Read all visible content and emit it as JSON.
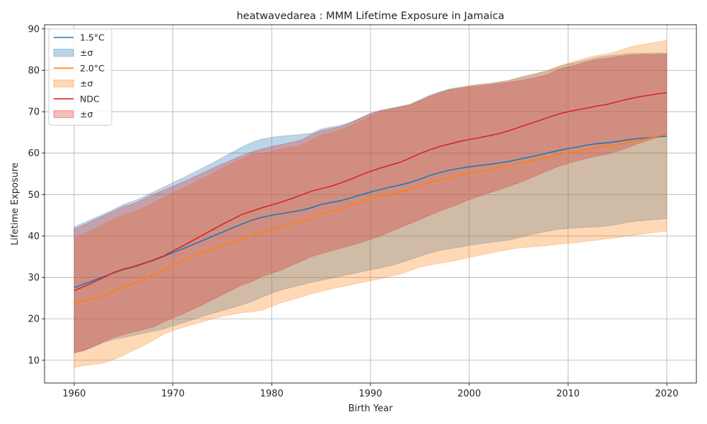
{
  "chart_data": {
    "type": "area",
    "title": "heatwavedarea : MMM Lifetime Exposure in Jamaica",
    "xlabel": "Birth Year",
    "ylabel": "Lifetime Exposure",
    "xlim": [
      1957,
      2023
    ],
    "ylim": [
      4.5,
      91
    ],
    "xticks": [
      1960,
      1970,
      1980,
      1990,
      2000,
      2010,
      2020
    ],
    "yticks": [
      10,
      20,
      30,
      40,
      50,
      60,
      70,
      80,
      90
    ],
    "grid": true,
    "legend_position": "top-left",
    "x": [
      1960,
      1961,
      1962,
      1963,
      1964,
      1965,
      1966,
      1967,
      1968,
      1969,
      1970,
      1971,
      1972,
      1973,
      1974,
      1975,
      1976,
      1977,
      1978,
      1979,
      1980,
      1981,
      1982,
      1983,
      1984,
      1985,
      1986,
      1987,
      1988,
      1989,
      1990,
      1991,
      1992,
      1993,
      1994,
      1995,
      1996,
      1997,
      1998,
      1999,
      2000,
      2001,
      2002,
      2003,
      2004,
      2005,
      2006,
      2007,
      2008,
      2009,
      2010,
      2011,
      2012,
      2013,
      2014,
      2015,
      2016,
      2017,
      2018,
      2019,
      2020
    ],
    "series": [
      {
        "name": "1.5°C",
        "band_label": "±σ",
        "color": "#1f77b4",
        "mean": [
          27.5,
          28.4,
          29.3,
          30.2,
          31.1,
          31.9,
          32.5,
          33.3,
          34.1,
          35.0,
          36.0,
          36.9,
          37.9,
          38.9,
          39.9,
          40.9,
          41.9,
          42.9,
          43.8,
          44.5,
          45.0,
          45.4,
          45.8,
          46.2,
          46.8,
          47.6,
          48.1,
          48.5,
          49.2,
          49.9,
          50.6,
          51.2,
          51.8,
          52.3,
          52.9,
          53.7,
          54.6,
          55.3,
          55.9,
          56.3,
          56.7,
          57.0,
          57.3,
          57.6,
          58.0,
          58.5,
          59.0,
          59.5,
          60.1,
          60.6,
          61.1,
          61.5,
          62.0,
          62.3,
          62.5,
          62.8,
          63.2,
          63.5,
          63.7,
          63.9,
          64.1
        ],
        "upper": [
          42.2,
          43.2,
          44.3,
          45.3,
          46.4,
          47.6,
          48.4,
          49.4,
          50.6,
          51.7,
          52.9,
          54.0,
          55.2,
          56.4,
          57.6,
          58.9,
          60.2,
          61.5,
          62.6,
          63.4,
          63.8,
          64.1,
          64.3,
          64.5,
          64.8,
          65.8,
          66.3,
          66.7,
          67.5,
          68.5,
          69.5,
          70.3,
          70.8,
          71.3,
          71.8,
          72.9,
          74.0,
          74.8,
          75.5,
          75.9,
          76.2,
          76.6,
          76.8,
          77.2,
          77.5,
          78.2,
          78.8,
          79.3,
          79.8,
          80.8,
          81.5,
          82.0,
          82.5,
          83.1,
          83.5,
          83.7,
          84.0,
          84.1,
          84.1,
          84.2,
          84.1
        ],
        "lower": [
          11.8,
          12.3,
          13.3,
          14.3,
          15.0,
          15.5,
          16.0,
          16.5,
          17.0,
          17.5,
          18.3,
          19.0,
          19.8,
          20.6,
          21.3,
          22.0,
          22.7,
          23.4,
          24.2,
          25.2,
          26.2,
          27.0,
          27.6,
          28.2,
          28.8,
          29.3,
          29.8,
          30.3,
          30.8,
          31.3,
          31.8,
          32.3,
          32.8,
          33.5,
          34.3,
          35.1,
          35.9,
          36.5,
          36.9,
          37.3,
          37.7,
          38.1,
          38.4,
          38.7,
          39.0,
          39.6,
          40.2,
          40.7,
          41.2,
          41.6,
          41.8,
          42.0,
          42.1,
          42.2,
          42.4,
          42.8,
          43.3,
          43.6,
          43.8,
          44.0,
          44.2
        ]
      },
      {
        "name": "2.0°C",
        "band_label": "±σ",
        "color": "#ff7f0e",
        "mean": [
          23.6,
          24.3,
          25.0,
          25.7,
          26.6,
          27.6,
          28.5,
          29.5,
          30.6,
          31.8,
          33.0,
          34.0,
          35.0,
          35.9,
          36.8,
          37.7,
          38.6,
          39.4,
          40.2,
          40.8,
          41.5,
          42.2,
          42.9,
          43.5,
          44.3,
          45.3,
          46.0,
          46.5,
          47.3,
          48.2,
          49.0,
          49.6,
          50.1,
          50.6,
          51.2,
          52.0,
          52.8,
          53.5,
          54.1,
          54.7,
          55.2,
          55.6,
          56.0,
          56.5,
          56.9,
          57.5,
          58.0,
          58.5,
          59.0,
          59.6,
          60.1,
          60.5,
          60.9,
          61.3,
          61.7,
          62.1,
          62.5,
          63.0,
          63.5,
          64.0,
          64.5
        ],
        "upper": [
          39.4,
          40.5,
          41.6,
          42.8,
          44.0,
          45.1,
          45.8,
          46.8,
          48.0,
          49.2,
          50.4,
          51.5,
          52.7,
          53.9,
          55.1,
          56.3,
          57.5,
          58.6,
          59.6,
          60.0,
          60.4,
          61.1,
          61.5,
          62.0,
          63.2,
          64.3,
          64.9,
          65.6,
          66.6,
          67.8,
          69.0,
          69.9,
          70.5,
          71.1,
          71.7,
          72.7,
          73.7,
          74.5,
          75.3,
          75.7,
          76.3,
          76.6,
          76.8,
          77.1,
          77.6,
          78.2,
          78.8,
          79.4,
          80.1,
          81.0,
          81.7,
          82.4,
          83.1,
          83.6,
          84.0,
          84.6,
          85.4,
          86.0,
          86.4,
          86.8,
          87.2
        ],
        "lower": [
          8.2,
          8.7,
          9.0,
          9.3,
          10.2,
          11.2,
          12.4,
          13.5,
          14.8,
          16.2,
          17.2,
          17.9,
          18.6,
          19.3,
          20.0,
          20.6,
          21.1,
          21.5,
          21.7,
          22.1,
          23.0,
          23.9,
          24.6,
          25.3,
          26.0,
          26.6,
          27.2,
          27.7,
          28.2,
          28.7,
          29.2,
          29.7,
          30.3,
          30.8,
          31.6,
          32.5,
          33.0,
          33.4,
          33.8,
          34.3,
          34.8,
          35.3,
          35.8,
          36.3,
          36.7,
          37.1,
          37.3,
          37.5,
          37.7,
          38.0,
          38.2,
          38.4,
          38.8,
          39.0,
          39.3,
          39.6,
          40.0,
          40.3,
          40.6,
          40.9,
          41.2
        ]
      },
      {
        "name": "NDC",
        "band_label": "±σ",
        "color": "#d62728",
        "mean": [
          26.8,
          27.8,
          28.9,
          30.0,
          31.2,
          32.0,
          32.6,
          33.4,
          34.2,
          35.1,
          36.4,
          37.6,
          38.9,
          40.2,
          41.5,
          42.8,
          44.0,
          45.2,
          46.0,
          46.8,
          47.5,
          48.2,
          49.0,
          49.9,
          50.8,
          51.4,
          52.0,
          52.8,
          53.7,
          54.7,
          55.6,
          56.4,
          57.1,
          57.8,
          58.8,
          59.9,
          60.8,
          61.6,
          62.2,
          62.8,
          63.3,
          63.7,
          64.2,
          64.7,
          65.4,
          66.2,
          67.0,
          67.8,
          68.6,
          69.4,
          70.0,
          70.5,
          70.9,
          71.4,
          71.8,
          72.4,
          73.0,
          73.5,
          73.9,
          74.3,
          74.6
        ],
        "upper": [
          41.7,
          42.7,
          43.8,
          44.9,
          46.0,
          47.1,
          47.8,
          48.9,
          50.0,
          51.0,
          52.0,
          53.0,
          54.1,
          55.2,
          56.3,
          57.4,
          58.4,
          59.4,
          60.3,
          61.0,
          61.6,
          62.1,
          62.6,
          63.2,
          64.4,
          65.4,
          65.9,
          66.4,
          67.3,
          68.5,
          69.6,
          70.3,
          70.7,
          71.1,
          71.6,
          72.6,
          73.7,
          74.6,
          75.3,
          75.6,
          76.0,
          76.2,
          76.5,
          76.8,
          77.1,
          77.5,
          77.9,
          78.4,
          79.0,
          80.2,
          80.8,
          81.4,
          82.1,
          82.6,
          82.9,
          83.3,
          83.6,
          83.7,
          83.8,
          83.8,
          83.9
        ],
        "lower": [
          11.8,
          12.4,
          13.4,
          14.5,
          15.5,
          16.2,
          16.8,
          17.4,
          18.0,
          19.2,
          20.2,
          21.2,
          22.3,
          23.4,
          24.6,
          25.8,
          27.0,
          28.2,
          29.0,
          30.2,
          31.0,
          31.8,
          32.9,
          33.9,
          35.0,
          35.7,
          36.4,
          37.0,
          37.7,
          38.4,
          39.2,
          40.0,
          41.0,
          42.0,
          43.0,
          44.0,
          45.0,
          46.0,
          46.9,
          47.8,
          48.8,
          49.6,
          50.4,
          51.2,
          52.0,
          52.8,
          53.8,
          54.8,
          55.8,
          56.8,
          57.5,
          58.2,
          58.8,
          59.3,
          59.8,
          60.5,
          61.3,
          62.2,
          63.0,
          63.8,
          64.4
        ]
      }
    ]
  }
}
